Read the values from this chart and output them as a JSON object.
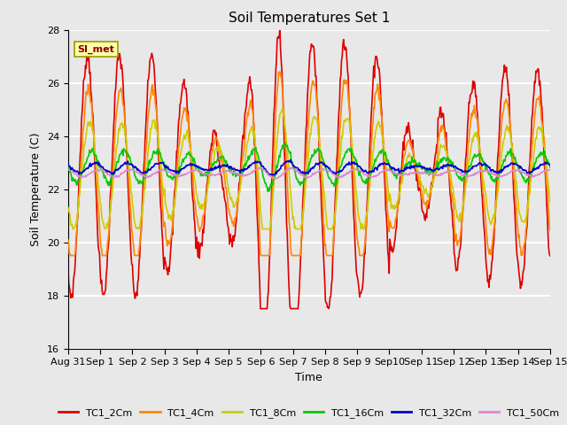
{
  "title": "Soil Temperatures Set 1",
  "xlabel": "Time",
  "ylabel": "Soil Temperature (C)",
  "ylim": [
    16,
    28
  ],
  "yticks": [
    16,
    18,
    20,
    22,
    24,
    26,
    28
  ],
  "plot_bg": "#e8e8e8",
  "fig_bg": "#e8e8e8",
  "grid_color": "white",
  "series": {
    "TC1_2Cm": {
      "color": "#dd0000",
      "lw": 1.2
    },
    "TC1_4Cm": {
      "color": "#ff8800",
      "lw": 1.2
    },
    "TC1_8Cm": {
      "color": "#cccc00",
      "lw": 1.2
    },
    "TC1_16Cm": {
      "color": "#00cc00",
      "lw": 1.2
    },
    "TC1_32Cm": {
      "color": "#0000cc",
      "lw": 1.2
    },
    "TC1_50Cm": {
      "color": "#dd88cc",
      "lw": 1.2
    }
  },
  "annotation_text": "SI_met",
  "n_days": 15,
  "pts_per_day": 48
}
